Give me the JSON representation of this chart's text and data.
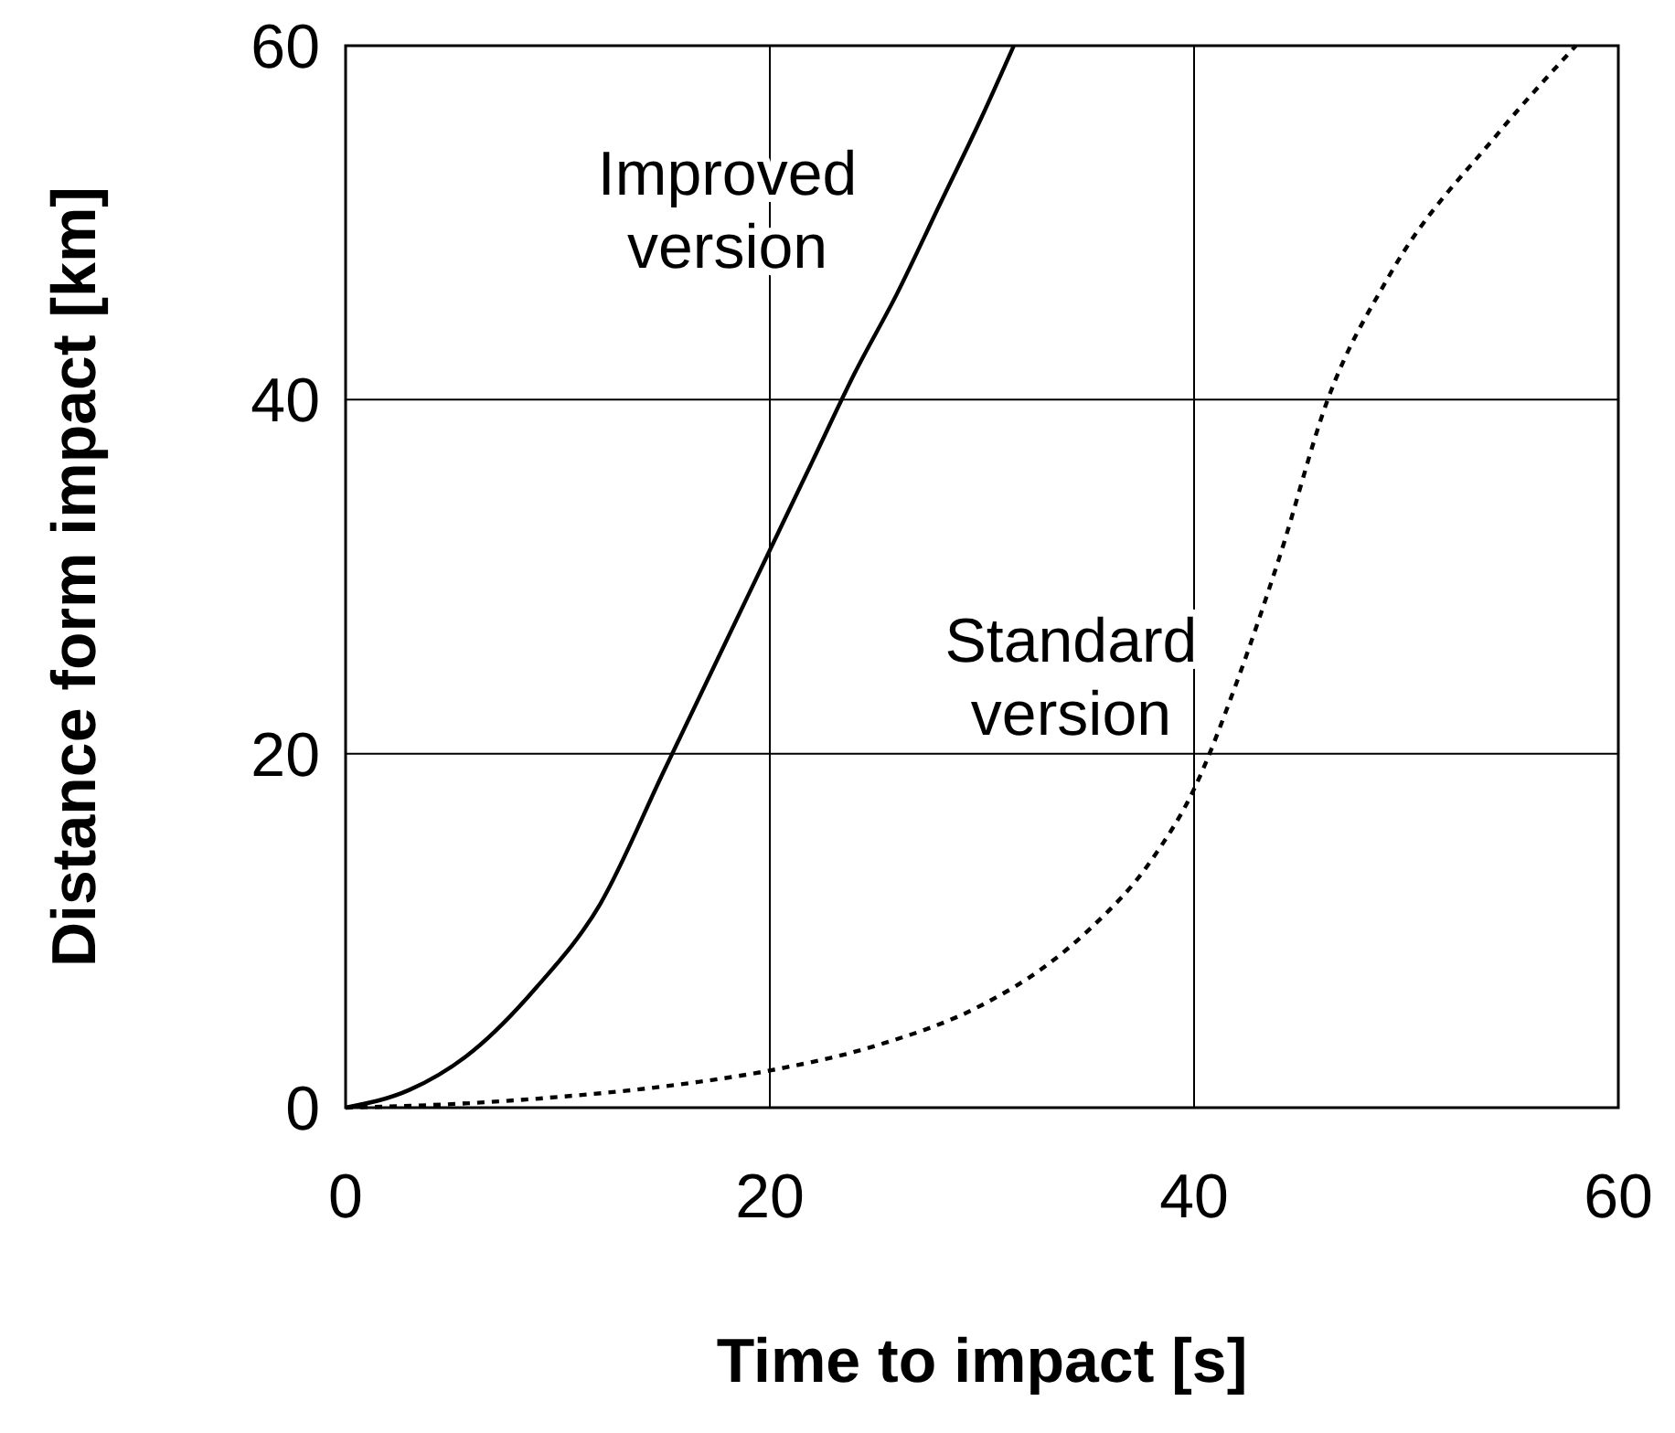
{
  "chart_data": {
    "type": "line",
    "xlabel": "Time to impact [s]",
    "ylabel": "Distance form impact [km]",
    "xlim": [
      0,
      60
    ],
    "ylim": [
      0,
      60
    ],
    "xticks": [
      0,
      20,
      40,
      60
    ],
    "yticks": [
      0,
      20,
      40,
      60
    ],
    "grid": true,
    "legend": false,
    "series": [
      {
        "name": "Improved version",
        "color": "#000000",
        "line_style": "solid",
        "x": [
          0,
          3,
          6,
          9,
          12,
          15,
          18,
          20,
          22,
          24,
          26,
          28,
          30,
          31.5
        ],
        "values": [
          0,
          1,
          3.2,
          6.8,
          11.5,
          19,
          26.5,
          31.5,
          36.5,
          41.5,
          46,
          51,
          56,
          60
        ]
      },
      {
        "name": "Standard version",
        "color": "#000000",
        "line_style": "dotted",
        "x": [
          0,
          5,
          10,
          15,
          20,
          25,
          30,
          33,
          35,
          38,
          40,
          42,
          44,
          46.3,
          49.2,
          54.3,
          58
        ],
        "values": [
          0,
          0.2,
          0.6,
          1.2,
          2.1,
          3.5,
          5.8,
          8,
          10,
          14,
          18,
          24,
          31,
          40,
          47,
          55,
          60
        ]
      }
    ]
  }
}
